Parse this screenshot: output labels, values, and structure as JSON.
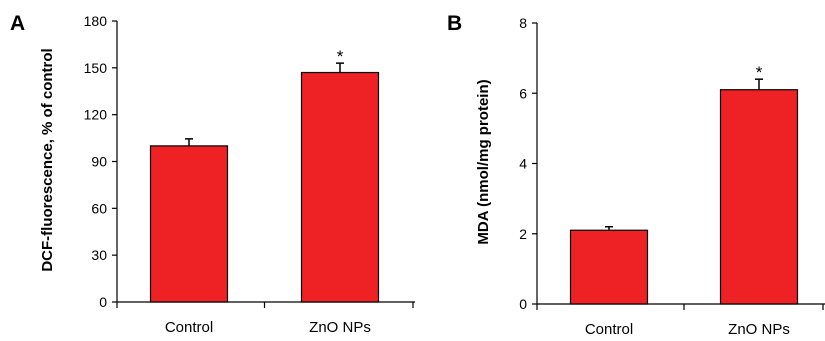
{
  "chart_data": [
    {
      "type": "bar",
      "panel": "A",
      "categories": [
        "Control",
        "ZnO NPs"
      ],
      "values": [
        100,
        147
      ],
      "errors": [
        4.5,
        6
      ],
      "annotations": [
        "",
        "*"
      ],
      "ylabel": "DCF-fluorescence, % of control",
      "ylim": [
        0,
        180
      ],
      "yticks": [
        0,
        30,
        60,
        90,
        120,
        150,
        180
      ],
      "bar_color": "#ee2224"
    },
    {
      "type": "bar",
      "panel": "B",
      "categories": [
        "Control",
        "ZnO NPs"
      ],
      "values": [
        2.1,
        6.1
      ],
      "errors": [
        0.1,
        0.3
      ],
      "annotations": [
        "",
        "*"
      ],
      "ylabel": "MDA (nmol/mg protein)",
      "ylim": [
        0,
        8
      ],
      "yticks": [
        0,
        2,
        4,
        6,
        8
      ],
      "bar_color": "#ee2224"
    }
  ]
}
